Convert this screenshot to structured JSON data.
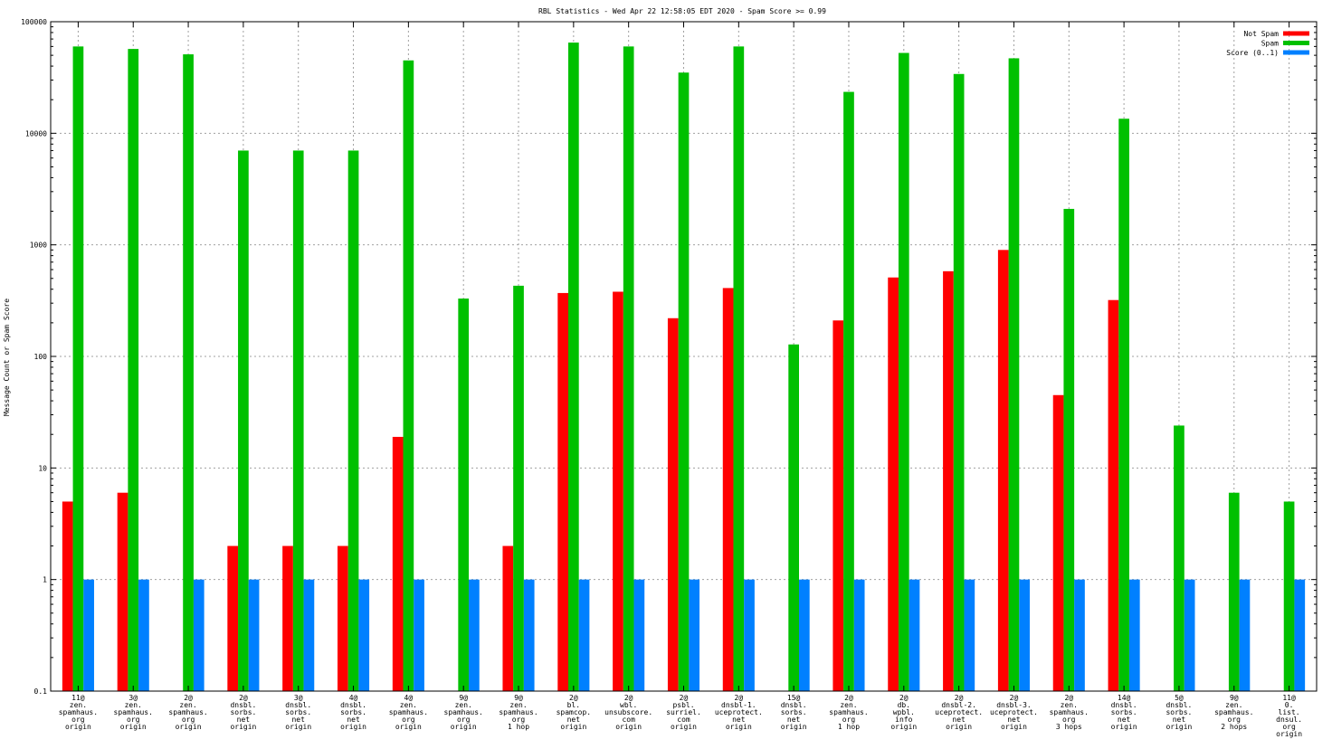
{
  "chart_data": {
    "type": "bar",
    "title": "RBL Statistics - Wed Apr 22 12:58:05 EDT 2020 - Spam Score >= 0.99",
    "ylabel": "Message Count or Spam Score",
    "xlabel": "",
    "yscale": "log",
    "ylim": [
      0.1,
      100000
    ],
    "yticks": [
      0.1,
      1,
      10,
      100,
      1000,
      10000,
      100000
    ],
    "ytick_labels": [
      "0.1",
      "1",
      "10",
      "100",
      "1000",
      "10000",
      "100000"
    ],
    "grid": true,
    "legend_position": "top-right",
    "categories": [
      [
        "11@",
        "zen.",
        "spamhaus.",
        "org",
        "origin"
      ],
      [
        "3@",
        "zen.",
        "spamhaus.",
        "org",
        "origin"
      ],
      [
        "2@",
        "zen.",
        "spamhaus.",
        "org",
        "origin"
      ],
      [
        "2@",
        "dnsbl.",
        "sorbs.",
        "net",
        "origin"
      ],
      [
        "3@",
        "dnsbl.",
        "sorbs.",
        "net",
        "origin"
      ],
      [
        "4@",
        "dnsbl.",
        "sorbs.",
        "net",
        "origin"
      ],
      [
        "4@",
        "zen.",
        "spamhaus.",
        "org",
        "origin"
      ],
      [
        "9@",
        "zen.",
        "spamhaus.",
        "org",
        "origin"
      ],
      [
        "9@",
        "zen.",
        "spamhaus.",
        "org",
        "1 hop"
      ],
      [
        "2@",
        "bl.",
        "spamcop.",
        "net",
        "origin"
      ],
      [
        "2@",
        "wbl.",
        "unsubscore.",
        "com",
        "origin"
      ],
      [
        "2@",
        "psbl.",
        "surriel.",
        "com",
        "origin"
      ],
      [
        "2@",
        "dnsbl-1.",
        "uceprotect.",
        "net",
        "origin"
      ],
      [
        "15@",
        "dnsbl.",
        "sorbs.",
        "net",
        "origin"
      ],
      [
        "2@",
        "zen.",
        "spamhaus.",
        "org",
        "1 hop"
      ],
      [
        "2@",
        "db.",
        "wpbl.",
        "info",
        "origin"
      ],
      [
        "2@",
        "dnsbl-2.",
        "uceprotect.",
        "net",
        "origin"
      ],
      [
        "2@",
        "dnsbl-3.",
        "uceprotect.",
        "net",
        "origin"
      ],
      [
        "2@",
        "zen.",
        "spamhaus.",
        "org",
        "3 hops"
      ],
      [
        "14@",
        "dnsbl.",
        "sorbs.",
        "net",
        "origin"
      ],
      [
        "5@",
        "dnsbl.",
        "sorbs.",
        "net",
        "origin"
      ],
      [
        "9@",
        "zen.",
        "spamhaus.",
        "org",
        "2 hops"
      ],
      [
        "11@",
        "0.",
        "list.",
        "dnsul.",
        "org",
        "origin"
      ]
    ],
    "series": [
      {
        "name": "Not Spam",
        "color": "#ff0000",
        "values": [
          5,
          6,
          null,
          2,
          2,
          2,
          19,
          null,
          2,
          370,
          380,
          220,
          410,
          null,
          210,
          510,
          580,
          900,
          45,
          320,
          null,
          null,
          null
        ]
      },
      {
        "name": "Spam",
        "color": "#00c000",
        "values": [
          60000,
          57000,
          51000,
          7000,
          7000,
          7000,
          45000,
          330,
          430,
          65000,
          60000,
          35000,
          60000,
          128,
          23500,
          52500,
          34000,
          47000,
          2100,
          13500,
          24,
          6,
          5
        ]
      },
      {
        "name": "Score (0..1)",
        "color": "#0080ff",
        "values": [
          1,
          1,
          1,
          1,
          1,
          1,
          1,
          1,
          1,
          1,
          1,
          1,
          1,
          1,
          1,
          1,
          1,
          1,
          1,
          1,
          1,
          1,
          1
        ]
      }
    ]
  }
}
